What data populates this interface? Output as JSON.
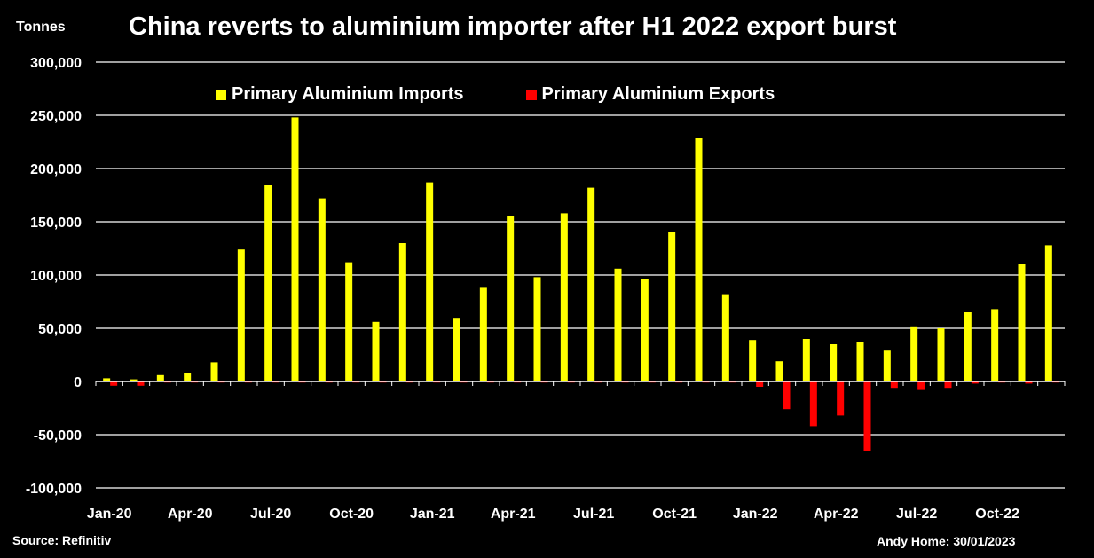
{
  "title": "China reverts to aluminium importer after H1 2022 export burst",
  "unit_label": "Tonnes",
  "source": "Source: Refinitiv",
  "credit": "Andy Home: 30/01/2023",
  "colors": {
    "imports": "#FFFF00",
    "exports": "#FF0000",
    "background": "#000000",
    "grid": "#FFFFFF"
  },
  "chart_data": {
    "type": "bar",
    "title": "China reverts to aluminium importer after H1 2022 export burst",
    "ylabel": "Tonnes",
    "ylim": [
      -100000,
      300000
    ],
    "yticks": [
      -100000,
      -50000,
      0,
      50000,
      100000,
      150000,
      200000,
      250000,
      300000
    ],
    "ytick_labels": [
      "-100,000",
      "-50,000",
      "0",
      "50,000",
      "100,000",
      "150,000",
      "200,000",
      "250,000",
      "300,000"
    ],
    "grid": true,
    "legend_position": "top",
    "categories": [
      "Jan-20",
      "Feb-20",
      "Mar-20",
      "Apr-20",
      "May-20",
      "Jun-20",
      "Jul-20",
      "Aug-20",
      "Sep-20",
      "Oct-20",
      "Nov-20",
      "Dec-20",
      "Jan-21",
      "Feb-21",
      "Mar-21",
      "Apr-21",
      "May-21",
      "Jun-21",
      "Jul-21",
      "Aug-21",
      "Sep-21",
      "Oct-21",
      "Nov-21",
      "Dec-21",
      "Jan-22",
      "Feb-22",
      "Mar-22",
      "Apr-22",
      "May-22",
      "Jun-22",
      "Jul-22",
      "Aug-22",
      "Sep-22",
      "Oct-22",
      "Nov-22",
      "Dec-22"
    ],
    "xtick_labels": [
      "Jan-20",
      "Apr-20",
      "Jul-20",
      "Oct-20",
      "Jan-21",
      "Apr-21",
      "Jul-21",
      "Oct-21",
      "Jan-22",
      "Apr-22",
      "Jul-22",
      "Oct-22"
    ],
    "series": [
      {
        "name": "Primary Aluminium Imports",
        "values": [
          3000,
          2000,
          6000,
          8000,
          18000,
          124000,
          185000,
          248000,
          172000,
          112000,
          56000,
          130000,
          187000,
          59000,
          88000,
          155000,
          98000,
          158000,
          182000,
          106000,
          96000,
          140000,
          229000,
          82000,
          39000,
          19000,
          40000,
          35000,
          37000,
          29000,
          51000,
          50000,
          65000,
          68000,
          110000,
          128000
        ]
      },
      {
        "name": "Primary Aluminium Exports",
        "values": [
          -4000,
          -4000,
          -1000,
          -1000,
          -1000,
          -1000,
          -1000,
          -1000,
          -1000,
          -1000,
          -1000,
          -1000,
          -1000,
          -1000,
          -1000,
          -1000,
          -1000,
          -1000,
          -1000,
          -1000,
          -1000,
          -1000,
          -1000,
          -1000,
          -5000,
          -26000,
          -42000,
          -32000,
          -65000,
          -6000,
          -8000,
          -6000,
          -2000,
          -1000,
          -2000,
          -1000
        ]
      }
    ]
  }
}
